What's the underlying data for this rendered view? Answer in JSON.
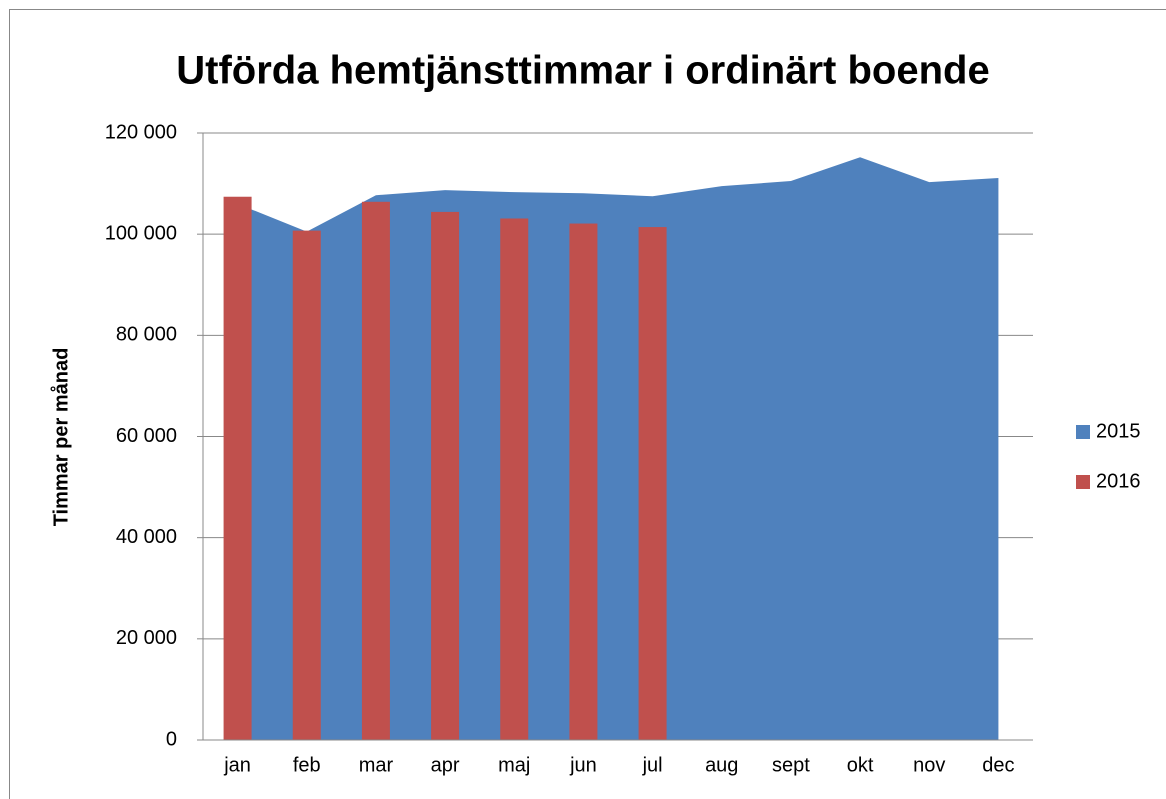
{
  "chart_data": {
    "type": "area-bar",
    "title": "Utförda hemtjänsttimmar i ordinärt boende",
    "y_label": "Timmar per månad",
    "categories": [
      "jan",
      "feb",
      "mar",
      "apr",
      "maj",
      "jun",
      "jul",
      "aug",
      "sept",
      "okt",
      "nov",
      "dec"
    ],
    "series": [
      {
        "name": "2015",
        "color": "#4f81bd",
        "kind": "area",
        "values": [
          106000,
          100500,
          107700,
          108700,
          108300,
          108100,
          107500,
          109500,
          110500,
          115200,
          110300,
          111100
        ]
      },
      {
        "name": "2016",
        "color": "#c0504d",
        "kind": "bar",
        "values": [
          107400,
          100700,
          106400,
          104400,
          103100,
          102100,
          101400,
          null,
          null,
          null,
          null,
          null
        ]
      }
    ],
    "ylim": [
      0,
      120000
    ],
    "yticks": [
      0,
      {
        "value": 20000,
        "label": "20 000"
      },
      {
        "value": 40000,
        "label": "40 000"
      },
      {
        "value": 60000,
        "label": "60 000"
      },
      {
        "value": 80000,
        "label": "80 000"
      },
      {
        "value": 100000,
        "label": "100 000"
      },
      {
        "value": 120000,
        "label": "120 000"
      }
    ],
    "grid": true,
    "legend": "right"
  }
}
